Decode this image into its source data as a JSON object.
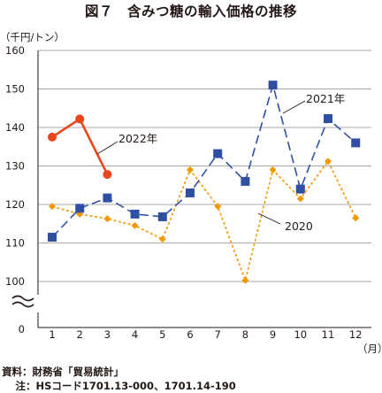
{
  "chart_data": {
    "type": "line",
    "title": "図７　含みつ糖の輸入価格の推移",
    "ylabel": "（千円/トン）",
    "xlabel": "（月）",
    "ylim": [
      100,
      160
    ],
    "yticks": [
      "160",
      "150",
      "140",
      "130",
      "120",
      "110",
      "100"
    ],
    "y_zero_label": "0",
    "y_axis_broken": true,
    "x": [
      "1",
      "2",
      "3",
      "4",
      "5",
      "6",
      "7",
      "8",
      "9",
      "10",
      "11",
      "12"
    ],
    "grid": true,
    "series": [
      {
        "name": "2020",
        "color": "#f39800",
        "style": "dotted",
        "marker": "diamond",
        "values": [
          119.5,
          117.5,
          116.3,
          114.5,
          111,
          129,
          119.5,
          100.3,
          129,
          121.5,
          131.2,
          116.5
        ]
      },
      {
        "name": "2021年",
        "color": "#2e4fa3",
        "style": "dashed",
        "marker": "square",
        "values": [
          111.5,
          119,
          121.7,
          117.5,
          116.8,
          123,
          133.2,
          126,
          151,
          124,
          142.3,
          136
        ]
      },
      {
        "name": "2022年",
        "color": "#e8461c",
        "style": "solid",
        "marker": "circle",
        "values": [
          137.5,
          142.2,
          127.8,
          null,
          null,
          null,
          null,
          null,
          null,
          null,
          null,
          null
        ]
      }
    ]
  },
  "source": {
    "line1": "資料：財務省「貿易統計」",
    "line2": "　注：HSコード1701.13-000、1701.14-190"
  }
}
